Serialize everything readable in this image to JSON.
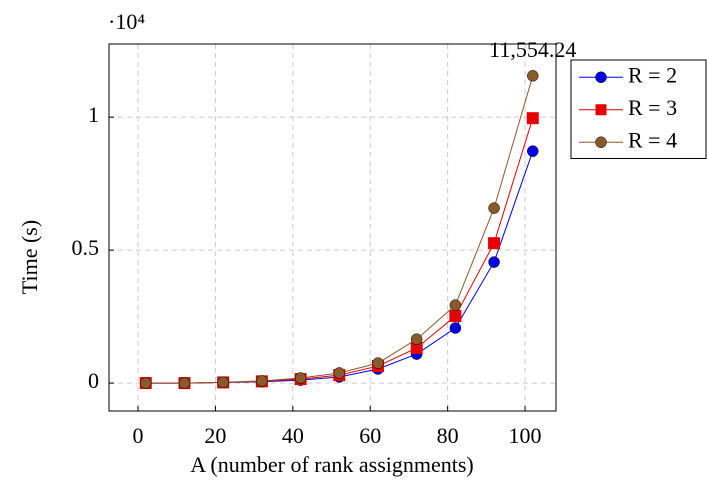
{
  "chart_data": {
    "type": "line",
    "x_label": "A (number of rank assignments)",
    "y_label": "Time (s)",
    "y_multiplier": "·10⁴",
    "xlim": [
      -7.5,
      108
    ],
    "xticks": [
      0,
      20,
      40,
      60,
      80,
      100
    ],
    "ylim": [
      -1050,
      12750
    ],
    "yticks": [
      {
        "value": 0,
        "label": "0"
      },
      {
        "value": 5000,
        "label": "0.5"
      },
      {
        "value": 10000,
        "label": "1"
      }
    ],
    "grid": true,
    "legend": "top-right",
    "x": [
      2,
      12,
      22,
      32,
      42,
      52,
      62,
      72,
      82,
      92,
      102
    ],
    "series": [
      {
        "name": "R = 2",
        "color": "#0000e6",
        "marker": "circle",
        "values": [
          0,
          0,
          20,
          50,
          110,
          230,
          530,
          1090,
          2070,
          4550,
          8720
        ]
      },
      {
        "name": "R = 3",
        "color": "#e60000",
        "marker": "square",
        "values": [
          0,
          0,
          25,
          65,
          150,
          300,
          640,
          1320,
          2520,
          5260,
          9960
        ]
      },
      {
        "name": "R = 4",
        "color": "#8b5a2b",
        "marker": "circle",
        "values": [
          0,
          0,
          30,
          80,
          190,
          380,
          750,
          1650,
          2930,
          6580,
          11554.24
        ],
        "value_labels": [
          null,
          null,
          null,
          null,
          null,
          null,
          null,
          null,
          null,
          null,
          "11,554.24"
        ]
      }
    ]
  }
}
